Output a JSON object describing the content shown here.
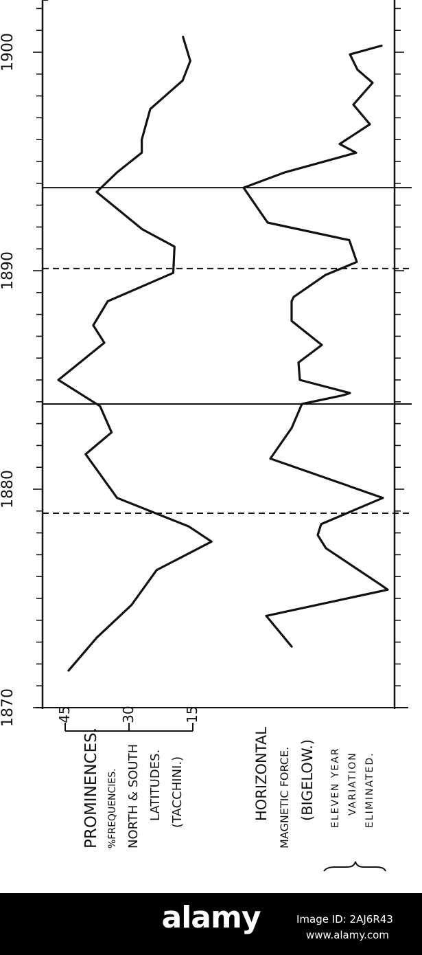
{
  "chart_data": {
    "type": "line",
    "orientation": "rotated-90-clockwise",
    "xlim": [
      1870,
      1902
    ],
    "x_ticks": [
      "1870",
      "1880",
      "1890",
      "1900"
    ],
    "series": [
      {
        "name": "PROMINENCES",
        "unit_label": "%FREQUENCIES.",
        "axis_ticks": [
          "45",
          "30",
          "15"
        ],
        "ylim": [
          45,
          15
        ],
        "points": [
          [
            1871.7,
            44.2
          ],
          [
            1873.2,
            37.6
          ],
          [
            1874.7,
            29.4
          ],
          [
            1876.3,
            23.5
          ],
          [
            1877.6,
            10.6
          ],
          [
            1878.3,
            16.0
          ],
          [
            1879.6,
            32.8
          ],
          [
            1881.6,
            40.2
          ],
          [
            1882.6,
            34.1
          ],
          [
            1883.8,
            36.8
          ],
          [
            1885.0,
            46.6
          ],
          [
            1886.7,
            35.8
          ],
          [
            1887.5,
            38.4
          ],
          [
            1888.6,
            35.0
          ],
          [
            1889.9,
            19.6
          ],
          [
            1891.1,
            19.3
          ],
          [
            1891.9,
            26.9
          ],
          [
            1893.6,
            37.6
          ],
          [
            1894.5,
            32.8
          ],
          [
            1895.4,
            27.0
          ],
          [
            1896.0,
            27.0
          ],
          [
            1897.4,
            25.0
          ],
          [
            1898.7,
            17.4
          ],
          [
            1899.6,
            15.6
          ],
          [
            1900.7,
            17.3
          ]
        ]
      },
      {
        "name": "HORIZONTAL MAGNETIC FORCE.",
        "source_label": "(BIGELOW.)",
        "points": [
          [
            1872.8,
            425
          ],
          [
            1874.2,
            388
          ],
          [
            1875.4,
            565
          ],
          [
            1875.6,
            556
          ],
          [
            1877.3,
            475
          ],
          [
            1877.9,
            463
          ],
          [
            1878.4,
            468
          ],
          [
            1879.6,
            558
          ],
          [
            1881.4,
            394
          ],
          [
            1882.8,
            425
          ],
          [
            1883.9,
            440
          ],
          [
            1884.3,
            500
          ],
          [
            1884.4,
            510
          ],
          [
            1885.0,
            437
          ],
          [
            1885.8,
            435
          ],
          [
            1886.6,
            469
          ],
          [
            1887.7,
            425
          ],
          [
            1888.6,
            425
          ],
          [
            1888.8,
            428
          ],
          [
            1889.8,
            474
          ],
          [
            1890.4,
            520
          ],
          [
            1891.4,
            509
          ],
          [
            1892.2,
            390
          ],
          [
            1893.8,
            355
          ],
          [
            1894.5,
            415
          ],
          [
            1895.4,
            519
          ],
          [
            1895.8,
            495
          ],
          [
            1896.7,
            539
          ],
          [
            1897.6,
            515
          ],
          [
            1898.6,
            543
          ],
          [
            1899.2,
            521
          ],
          [
            1899.9,
            510
          ],
          [
            1900.3,
            556
          ]
        ]
      }
    ],
    "solid_reference_years": [
      1883.9,
      1893.8
    ],
    "dashed_reference_years": [
      1878.9,
      1890.1
    ]
  },
  "labels": {
    "prominences": "PROMINENCES.",
    "frequencies": "%FREQUENCIES.",
    "north_south": "NORTH & SOUTH",
    "latitudes": "LATITUDES.",
    "tacchini": "(TACCHINI.)",
    "horizontal": "HORIZONTAL",
    "magnetic_force": "MAGNETIC FORCE.",
    "bigelow": "(BIGELOW.)",
    "eleven_year": "ELEVEN YEAR",
    "variation": "VARIATION",
    "eliminated": "ELIMINATED."
  },
  "footer": {
    "brand": "alamy",
    "image_id": "Image ID: 2AJ6R43",
    "site": "www.alamy.com"
  },
  "colors": {
    "ink": "#111111",
    "background": "#ffffff",
    "footer": "#000000"
  }
}
